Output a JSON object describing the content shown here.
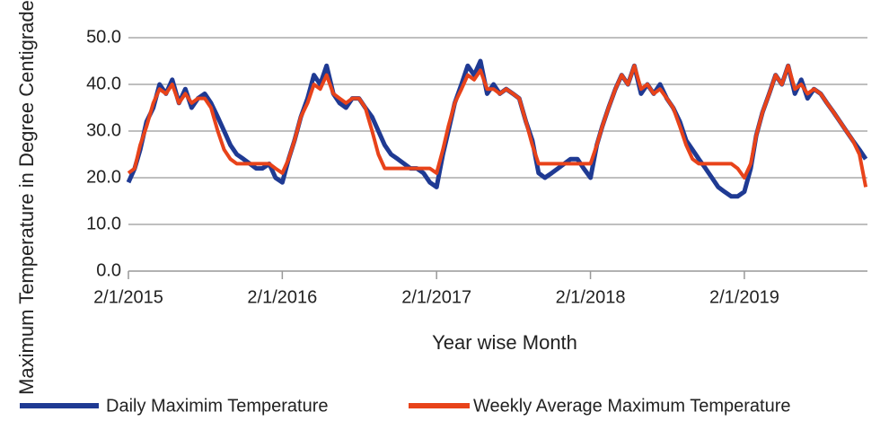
{
  "chart_data": {
    "type": "line",
    "ylabel": "Maximum Temperature in Degree Centigrade",
    "xlabel": "Year wise Month",
    "x": [
      "2/1/2015",
      "2/16/2015",
      "3/1/2015",
      "3/16/2015",
      "4/1/2015",
      "4/16/2015",
      "5/1/2015",
      "5/16/2015",
      "6/1/2015",
      "6/16/2015",
      "7/1/2015",
      "7/16/2015",
      "8/1/2015",
      "8/16/2015",
      "9/1/2015",
      "9/16/2015",
      "10/1/2015",
      "10/16/2015",
      "11/1/2015",
      "11/16/2015",
      "12/1/2015",
      "12/16/2015",
      "1/1/2016",
      "1/16/2016",
      "2/1/2016",
      "2/16/2016",
      "3/1/2016",
      "3/16/2016",
      "4/1/2016",
      "4/16/2016",
      "5/1/2016",
      "5/16/2016",
      "6/1/2016",
      "6/16/2016",
      "7/1/2016",
      "7/16/2016",
      "8/1/2016",
      "8/16/2016",
      "9/1/2016",
      "9/16/2016",
      "10/1/2016",
      "10/16/2016",
      "11/1/2016",
      "11/16/2016",
      "12/1/2016",
      "12/16/2016",
      "1/1/2017",
      "1/16/2017",
      "2/1/2017",
      "2/16/2017",
      "3/1/2017",
      "3/16/2017",
      "4/1/2017",
      "4/16/2017",
      "5/1/2017",
      "5/16/2017",
      "6/1/2017",
      "6/16/2017",
      "7/1/2017",
      "7/16/2017",
      "8/1/2017",
      "8/16/2017",
      "9/1/2017",
      "9/16/2017",
      "10/1/2017",
      "10/16/2017",
      "11/1/2017",
      "11/16/2017",
      "12/1/2017",
      "12/16/2017",
      "1/1/2018",
      "1/16/2018",
      "2/1/2018",
      "2/16/2018",
      "3/1/2018",
      "3/16/2018",
      "4/1/2018",
      "4/16/2018",
      "5/1/2018",
      "5/16/2018",
      "6/1/2018",
      "6/16/2018",
      "7/1/2018",
      "7/16/2018",
      "8/1/2018",
      "8/16/2018",
      "9/1/2018",
      "9/16/2018",
      "10/1/2018",
      "10/16/2018",
      "11/1/2018",
      "11/16/2018",
      "12/1/2018",
      "12/16/2018",
      "1/1/2019",
      "1/16/2019",
      "2/1/2019",
      "2/16/2019",
      "3/1/2019",
      "3/16/2019",
      "4/1/2019",
      "4/16/2019",
      "5/1/2019",
      "5/16/2019",
      "6/1/2019",
      "6/16/2019",
      "7/1/2019",
      "7/16/2019",
      "8/1/2019",
      "8/16/2019",
      "9/1/2019",
      "9/16/2019",
      "10/1/2019",
      "10/16/2019",
      "11/1/2019",
      "11/16/2019"
    ],
    "series": [
      {
        "name": "Daily Maximim Temperature",
        "color": "#1f3a93",
        "values": [
          19,
          22,
          26,
          32,
          35,
          40,
          38,
          41,
          36,
          39,
          35,
          37,
          38,
          36,
          33,
          30,
          27,
          25,
          24,
          23,
          22,
          22,
          23,
          20,
          19,
          24,
          28,
          33,
          37,
          42,
          40,
          44,
          38,
          36,
          35,
          37,
          37,
          35,
          33,
          30,
          27,
          25,
          24,
          23,
          22,
          22,
          21,
          19,
          18,
          25,
          30,
          36,
          40,
          44,
          42,
          45,
          38,
          40,
          38,
          39,
          38,
          37,
          32,
          28,
          21,
          20,
          21,
          22,
          23,
          24,
          24,
          22,
          20,
          27,
          31,
          35,
          39,
          42,
          40,
          44,
          38,
          40,
          38,
          40,
          37,
          35,
          32,
          28,
          26,
          24,
          22,
          20,
          18,
          17,
          16,
          16,
          17,
          22,
          29,
          34,
          38,
          42,
          40,
          44,
          38,
          41,
          37,
          39,
          38,
          36,
          34,
          32,
          30,
          28,
          26,
          24
        ]
      },
      {
        "name": "Weekly Average Maximum Temperature",
        "color": "#e8431a",
        "values": [
          21,
          22,
          27,
          31,
          36,
          39,
          38,
          40,
          36,
          38,
          36,
          37,
          37,
          35,
          30,
          26,
          24,
          23,
          23,
          23,
          23,
          23,
          23,
          22,
          21,
          24,
          28,
          33,
          36,
          40,
          39,
          42,
          38,
          37,
          36,
          37,
          37,
          35,
          30,
          25,
          22,
          22,
          22,
          22,
          22,
          22,
          22,
          22,
          21,
          26,
          31,
          36,
          39,
          42,
          41,
          43,
          39,
          39,
          38,
          39,
          38,
          37,
          32,
          27,
          23,
          23,
          23,
          23,
          23,
          23,
          23,
          23,
          23,
          27,
          31,
          35,
          39,
          42,
          40,
          44,
          39,
          40,
          38,
          39,
          37,
          35,
          31,
          27,
          24,
          23,
          23,
          23,
          23,
          23,
          23,
          22,
          20,
          23,
          29,
          34,
          38,
          42,
          40,
          44,
          39,
          40,
          38,
          39,
          38,
          36,
          34,
          32,
          30,
          28,
          25,
          18
        ]
      }
    ],
    "xlim": [
      "2/1/2015",
      "11/20/2019"
    ],
    "xticks": [
      "2/1/2015",
      "2/1/2016",
      "2/1/2017",
      "2/1/2018",
      "2/1/2019"
    ],
    "ylim": [
      0,
      50
    ],
    "yticks": [
      {
        "value": 0,
        "label": "0.0"
      },
      {
        "value": 10,
        "label": "10.0"
      },
      {
        "value": 20,
        "label": "20.0"
      },
      {
        "value": 30,
        "label": "30.0"
      },
      {
        "value": 40,
        "label": "40.0"
      },
      {
        "value": 50,
        "label": "50.0"
      }
    ],
    "grid": true,
    "legend": "bottom"
  }
}
